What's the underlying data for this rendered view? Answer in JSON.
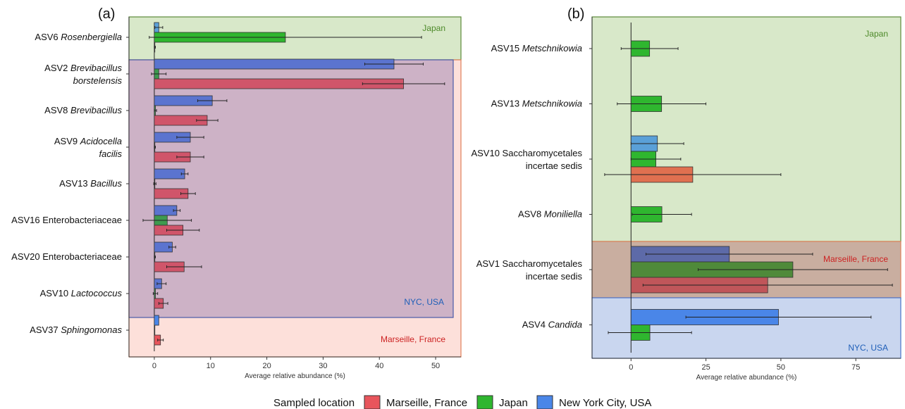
{
  "colors": {
    "marseille": "#e8555c",
    "japan": "#2fb62f",
    "nyc": "#4a86e8",
    "region_japan": "#d8e8c9",
    "region_japan_border": "#5c8a3a",
    "region_marseille": "#fde0da",
    "region_marseille_border": "#e0805a",
    "region_nyc_a": "#cdb2c6",
    "region_nyc_a_border": "#4a5ba8",
    "region_nyc_b": "#c9d6ef",
    "region_nyc_b_border": "#4a73c8",
    "region_marseille_b": "#c9aea0",
    "text_japan": "#4e8a2a",
    "text_marseille": "#cc2222",
    "text_nyc": "#1f5fb8"
  },
  "legend": {
    "title": "Sampled location",
    "items": [
      {
        "label": "Marseille, France",
        "color": "#e8555c"
      },
      {
        "label": "Japan",
        "color": "#2fb62f"
      },
      {
        "label": "New York City, USA",
        "color": "#4a86e8"
      }
    ]
  },
  "chart_data": [
    {
      "type": "bar",
      "orientation": "horizontal",
      "panel_label": "(a)",
      "xlabel": "Average relative abundance (%)",
      "xlim": [
        -4.5,
        54.5
      ],
      "xticks": [
        0,
        10,
        20,
        30,
        40,
        50
      ],
      "series_order": [
        "New York City, USA",
        "Japan",
        "Marseille, France"
      ],
      "categories": [
        {
          "prefix": "ASV6",
          "italic": "Rosenbergiella",
          "line2": "",
          "bars": [
            {
              "loc": "New York City, USA",
              "value": 0.8,
              "err": 0.7
            },
            {
              "loc": "Japan",
              "value": 23.3,
              "err": 24.2
            },
            {
              "loc": "Marseille, France",
              "value": 0.1,
              "err": 0.1
            }
          ]
        },
        {
          "prefix": "ASV2",
          "italic": "Brevibacillus",
          "line2": "borstelensis",
          "bars": [
            {
              "loc": "New York City, USA",
              "value": 42.6,
              "err": 5.2
            },
            {
              "loc": "Japan",
              "value": 0.8,
              "err": 1.3
            },
            {
              "loc": "Marseille, France",
              "value": 44.3,
              "err": 7.3
            }
          ]
        },
        {
          "prefix": "ASV8",
          "italic": "Brevibacillus",
          "line2": "",
          "bars": [
            {
              "loc": "New York City, USA",
              "value": 10.3,
              "err": 2.6
            },
            {
              "loc": "Japan",
              "value": 0.2,
              "err": 0.2
            },
            {
              "loc": "Marseille, France",
              "value": 9.4,
              "err": 1.9
            }
          ]
        },
        {
          "prefix": "ASV9",
          "italic": "Acidocella",
          "line2": "facilis",
          "bars": [
            {
              "loc": "New York City, USA",
              "value": 6.4,
              "err": 2.4
            },
            {
              "loc": "Japan",
              "value": 0.1,
              "err": 0.1
            },
            {
              "loc": "Marseille, France",
              "value": 6.4,
              "err": 2.4
            }
          ]
        },
        {
          "prefix": "ASV13",
          "italic": "Bacillus",
          "line2": "",
          "bars": [
            {
              "loc": "New York City, USA",
              "value": 5.4,
              "err": 0.6
            },
            {
              "loc": "Japan",
              "value": 0.1,
              "err": 0.2
            },
            {
              "loc": "Marseille, France",
              "value": 6.0,
              "err": 1.3
            }
          ]
        },
        {
          "prefix": "ASV16",
          "italic": "",
          "plain": "Enterobacteriaceae",
          "line2": "",
          "bars": [
            {
              "loc": "New York City, USA",
              "value": 4.0,
              "err": 0.6
            },
            {
              "loc": "Japan",
              "value": 2.3,
              "err": 4.3
            },
            {
              "loc": "Marseille, France",
              "value": 5.1,
              "err": 2.9
            }
          ]
        },
        {
          "prefix": "ASV20",
          "italic": "",
          "plain": "Enterobacteriaceae",
          "line2": "",
          "bars": [
            {
              "loc": "New York City, USA",
              "value": 3.2,
              "err": 0.6
            },
            {
              "loc": "Japan",
              "value": 0.1,
              "err": 0.1
            },
            {
              "loc": "Marseille, France",
              "value": 5.3,
              "err": 3.1
            }
          ]
        },
        {
          "prefix": "ASV10",
          "italic": "Lactococcus",
          "line2": "",
          "bars": [
            {
              "loc": "New York City, USA",
              "value": 1.3,
              "err": 0.8
            },
            {
              "loc": "Japan",
              "value": 0.2,
              "err": 0.4
            },
            {
              "loc": "Marseille, France",
              "value": 1.6,
              "err": 0.8
            }
          ]
        },
        {
          "prefix": "ASV37",
          "italic": "Sphingomonas",
          "line2": "",
          "bars": [
            {
              "loc": "New York City, USA",
              "value": 0.8,
              "err": 0.0
            },
            {
              "loc": "Japan",
              "value": 0.0,
              "err": 0.0
            },
            {
              "loc": "Marseille, France",
              "value": 1.1,
              "err": 0.5
            }
          ]
        }
      ],
      "regions": [
        {
          "label": "Japan",
          "from_category": 0,
          "to_category": 0
        },
        {
          "label": "NYC, USA",
          "from_category": 1,
          "to_category": 7
        },
        {
          "label": "Marseille, France",
          "from_category": 1,
          "to_category": 8
        }
      ]
    },
    {
      "type": "bar",
      "orientation": "horizontal",
      "panel_label": "(b)",
      "xlabel": "Average relative abundance (%)",
      "xlim": [
        -13,
        90
      ],
      "xticks": [
        0,
        25,
        50,
        75
      ],
      "series_order": [
        "New York City, USA",
        "Japan",
        "Marseille, France"
      ],
      "categories": [
        {
          "prefix": "ASV15",
          "italic": "Metschnikowia",
          "line2": "",
          "bars": [
            {
              "loc": "Japan",
              "value": 6.2,
              "err": 9.5
            }
          ]
        },
        {
          "prefix": "ASV13",
          "italic": "Metschnikowia",
          "line2": "",
          "bars": [
            {
              "loc": "Japan",
              "value": 10.2,
              "err": 14.8
            }
          ]
        },
        {
          "prefix": "ASV10",
          "italic": "",
          "plain": "Saccharomycetales",
          "line2": "incertae sedis",
          "bars": [
            {
              "loc": "New York City, USA",
              "value": 8.8,
              "err": 8.8
            },
            {
              "loc": "Japan",
              "value": 8.3,
              "err": 8.3
            },
            {
              "loc": "Marseille, France",
              "value": 20.6,
              "err": 29.4
            }
          ]
        },
        {
          "prefix": "ASV8",
          "italic": "Moniliella",
          "line2": "",
          "bars": [
            {
              "loc": "Japan",
              "value": 10.3,
              "err": 9.9
            }
          ]
        },
        {
          "prefix": "ASV1",
          "italic": "",
          "plain": "Saccharomycetales",
          "line2": "incertae sedis",
          "bars": [
            {
              "loc": "New York City, USA",
              "value": 32.8,
              "err": 27.8
            },
            {
              "loc": "Japan",
              "value": 54.0,
              "err": 31.6
            },
            {
              "loc": "Marseille, France",
              "value": 45.6,
              "err": 41.6
            }
          ]
        },
        {
          "prefix": "ASV4",
          "italic": "Candida",
          "line2": "",
          "bars": [
            {
              "loc": "New York City, USA",
              "value": 49.2,
              "err": 30.9
            },
            {
              "loc": "Japan",
              "value": 6.3,
              "err": 13.9
            }
          ]
        }
      ],
      "regions": [
        {
          "label": "Japan",
          "from_category": 0,
          "to_category": 3
        },
        {
          "label": "Marseille, France",
          "from_category": 4,
          "to_category": 4
        },
        {
          "label": "NYC, USA",
          "from_category": 5,
          "to_category": 5
        }
      ]
    }
  ]
}
